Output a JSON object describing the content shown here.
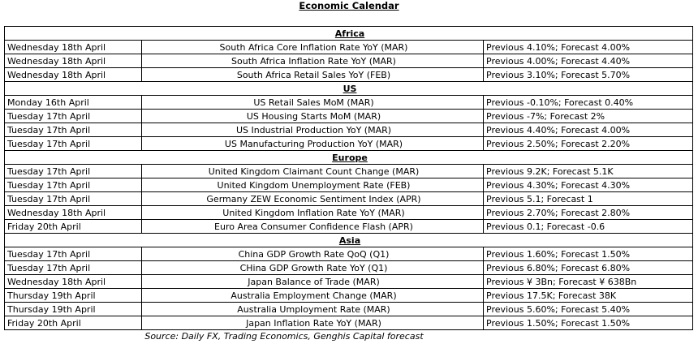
{
  "title": "Economic Calendar",
  "sections": [
    {
      "name": "Africa",
      "rows": [
        {
          "date": "Wednesday 18th April",
          "indicator": "South Africa Core Inflation Rate YoY (MAR)",
          "values": "Previous 4.10%; Forecast 4.00%"
        },
        {
          "date": "Wednesday 18th April",
          "indicator": "South Africa Inflation Rate YoY (MAR)",
          "values": "Previous 4.00%; Forecast 4.40%"
        },
        {
          "date": "Wednesday 18th April",
          "indicator": "South Africa Retail Sales YoY (FEB)",
          "values": "Previous 3.10%; Forecast 5.70%"
        }
      ]
    },
    {
      "name": "US",
      "rows": [
        {
          "date": "Monday 16th April",
          "indicator": "US Retail Sales MoM (MAR)",
          "values": "Previous -0.10%; Forecast 0.40%"
        },
        {
          "date": "Tuesday 17th April",
          "indicator": "US Housing Starts MoM (MAR)",
          "values": "Previous -7%; Forecast 2%"
        },
        {
          "date": "Tuesday 17th April",
          "indicator": "US Industrial Production YoY (MAR)",
          "values": "Previous 4.40%; Forecast 4.00%"
        },
        {
          "date": "Tuesday 17th April",
          "indicator": "US Manufacturing Production YoY (MAR)",
          "values": "Previous 2.50%; Forecast 2.20%"
        }
      ]
    },
    {
      "name": "Europe",
      "rows": [
        {
          "date": "Tuesday 17th April",
          "indicator": "United Kingdom Claimant Count Change (MAR)",
          "values": "Previous 9.2K; Forecast 5.1K"
        },
        {
          "date": "Tuesday 17th April",
          "indicator": "United Kingdom Unemployment Rate (FEB)",
          "values": "Previous 4.30%; Forecast 4.30%"
        },
        {
          "date": "Tuesday 17th April",
          "indicator": "Germany ZEW Economic Sentiment Index (APR)",
          "values": "Previous 5.1; Forecast 1"
        },
        {
          "date": "Wednesday 18th April",
          "indicator": "United Kingdom Inflation Rate YoY (MAR)",
          "values": "Previous 2.70%; Forecast 2.80%"
        },
        {
          "date": "Friday 20th April",
          "indicator": "Euro Area Consumer Confidence Flash (APR)",
          "values": "Previous 0.1; Forecast -0.6"
        }
      ]
    },
    {
      "name": "Asia",
      "rows": [
        {
          "date": "Tuesday 17th April",
          "indicator": "China GDP Growth Rate QoQ (Q1)",
          "values": "Previous 1.60%; Forecast 1.50%"
        },
        {
          "date": "Tuesday 17th April",
          "indicator": "CHina GDP Growth Rate YoY (Q1)",
          "values": "Previous 6.80%; Forecast 6.80%"
        },
        {
          "date": "Wednesday 18th April",
          "indicator": "Japan Balance of Trade (MAR)",
          "values": "Previous ¥ 3Bn; Forecast  ¥ 638Bn"
        },
        {
          "date": "Thursday 19th April",
          "indicator": "Australia Employment Change (MAR)",
          "values": "Previous 17.5K; Forecast 38K"
        },
        {
          "date": "Thursday 19th April",
          "indicator": "Australia Umployment Rate (MAR)",
          "values": "Previous 5.60%; Forecast 5.40%"
        },
        {
          "date": "Friday 20th April",
          "indicator": "Japan Inflation Rate YoY (MAR)",
          "values": "Previous 1.50%; Forecast 1.50%"
        }
      ]
    }
  ],
  "source": "Source: Daily FX, Trading Economics, Genghis Capital forecast"
}
